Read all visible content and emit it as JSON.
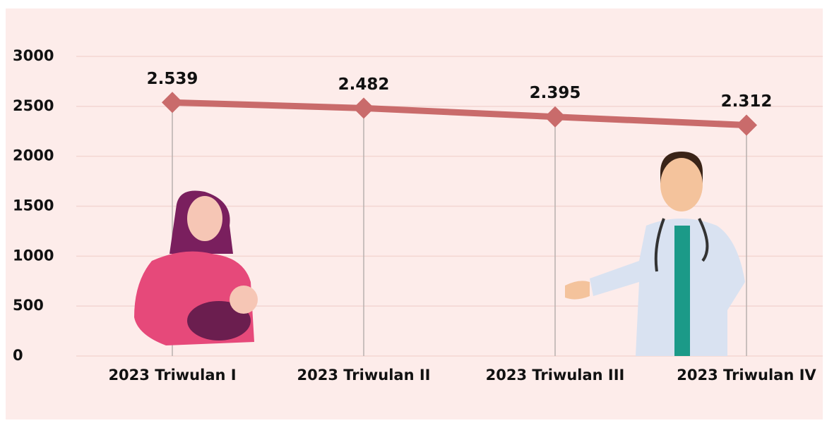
{
  "chart_data": {
    "type": "line",
    "categories": [
      "2023 Triwulan I",
      "2023 Triwulan II",
      "2023 Triwulan III",
      "2023 Triwulan IV"
    ],
    "values": [
      2539,
      2482,
      2395,
      2312
    ],
    "value_labels": [
      "2.539",
      "2.482",
      "2.395",
      "2.312"
    ],
    "color": "#c96b6b",
    "ylim": [
      0,
      3000
    ],
    "yticks": [
      0,
      500,
      1000,
      1500,
      2000,
      2500,
      3000
    ],
    "grid": true
  }
}
